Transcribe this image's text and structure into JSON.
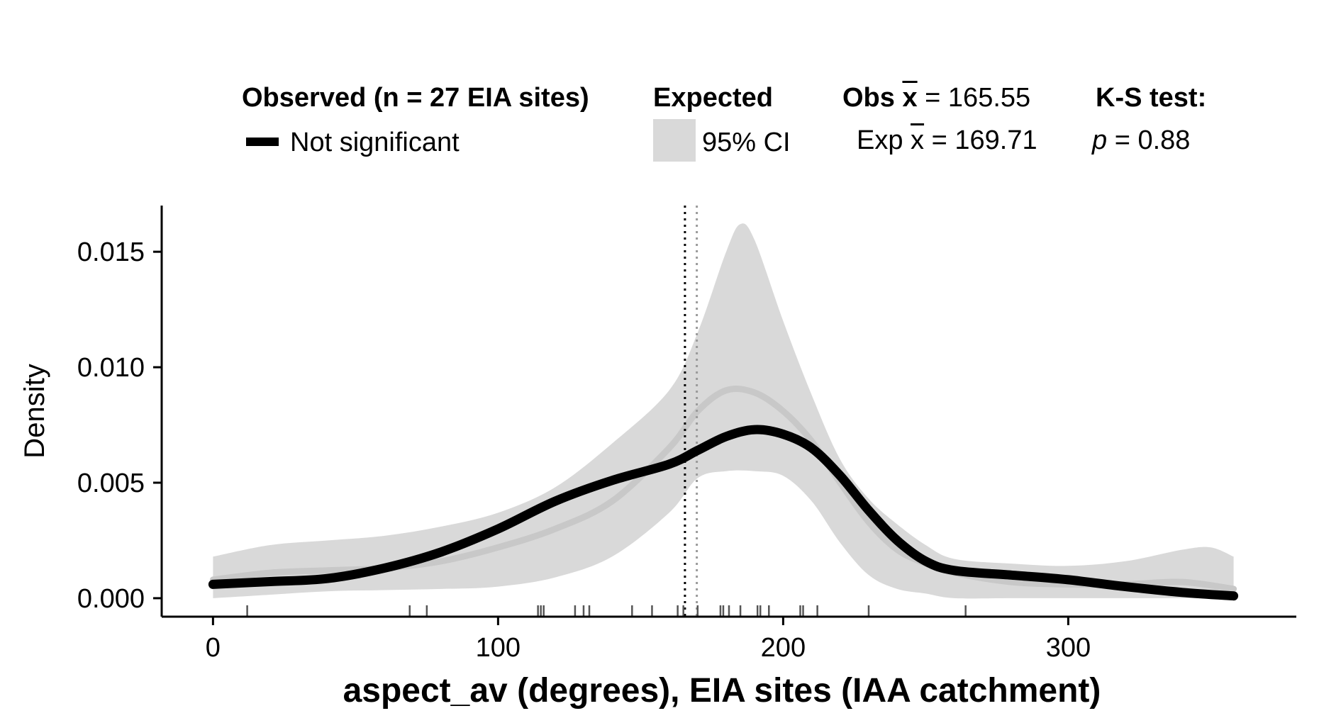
{
  "legend": {
    "observed_title": "Observed (n = 27 EIA sites)",
    "observed_item": "Not significant",
    "expected_title": "Expected",
    "expected_item": "95% CI",
    "obs_mean_label": "Obs",
    "obs_mean_symbol": "x",
    "obs_mean_value": "= 165.55",
    "exp_mean_label": "Exp",
    "exp_mean_symbol": "x",
    "exp_mean_value": "= 169.71",
    "ks_title": "K-S test:",
    "ks_p_symbol": "p",
    "ks_p_value": "= 0.88"
  },
  "colors": {
    "observed_line": "#000000",
    "expected_line": "#c8c8c8",
    "ci_fill": "#d9d9d9",
    "obs_mean_line": "#000000",
    "exp_mean_line": "#9a9a9a",
    "rug": "#555555"
  },
  "chart_data": {
    "type": "line",
    "xlabel": "aspect_av (degrees), EIA sites (IAA catchment)",
    "ylabel": "Density",
    "xlim": [
      -18,
      380
    ],
    "ylim": [
      -0.0008,
      0.017
    ],
    "x_ticks": [
      0,
      100,
      200,
      300
    ],
    "x_tick_labels": [
      "0",
      "100",
      "200",
      "300"
    ],
    "y_ticks": [
      0.0,
      0.005,
      0.01,
      0.015
    ],
    "y_tick_labels": [
      "0.000",
      "0.005",
      "0.010",
      "0.015"
    ],
    "grid": false,
    "legend_position": "top",
    "observed": {
      "name": "Not significant",
      "x": [
        0,
        20,
        40,
        60,
        80,
        100,
        120,
        140,
        160,
        170,
        180,
        190,
        200,
        210,
        220,
        230,
        240,
        250,
        260,
        280,
        300,
        320,
        340,
        358
      ],
      "y": [
        0.0006,
        0.00072,
        0.00085,
        0.0013,
        0.002,
        0.003,
        0.0042,
        0.0051,
        0.0058,
        0.0064,
        0.007,
        0.0073,
        0.0071,
        0.0065,
        0.0053,
        0.0038,
        0.0025,
        0.0016,
        0.0012,
        0.001,
        0.0008,
        0.0005,
        0.00025,
        0.0001
      ]
    },
    "expected": {
      "x": [
        0,
        20,
        40,
        60,
        80,
        100,
        120,
        140,
        160,
        170,
        180,
        190,
        200,
        210,
        220,
        230,
        240,
        250,
        260,
        280,
        300,
        320,
        340,
        358
      ],
      "y": [
        0.0008,
        0.0011,
        0.0012,
        0.0013,
        0.0016,
        0.0022,
        0.003,
        0.0042,
        0.0065,
        0.0081,
        0.009,
        0.0089,
        0.0081,
        0.0068,
        0.005,
        0.0033,
        0.0021,
        0.0015,
        0.0011,
        0.0007,
        0.0006,
        0.0006,
        0.0007,
        0.0004
      ]
    },
    "ci_lower": {
      "x": [
        0,
        20,
        40,
        60,
        80,
        100,
        120,
        140,
        160,
        170,
        180,
        190,
        200,
        210,
        220,
        230,
        240,
        250,
        260,
        280,
        300,
        320,
        340,
        358
      ],
      "y": [
        0.0,
        0.00015,
        0.0003,
        0.00035,
        0.0004,
        0.0005,
        0.0009,
        0.0018,
        0.0037,
        0.0052,
        0.0055,
        0.0055,
        0.0053,
        0.0042,
        0.0024,
        0.001,
        0.0004,
        0.0002,
        0.0,
        0.0,
        0.0,
        0.0,
        0.0,
        0.0
      ]
    },
    "ci_upper": {
      "x": [
        0,
        20,
        40,
        60,
        80,
        100,
        120,
        140,
        160,
        170,
        180,
        185,
        190,
        200,
        210,
        220,
        230,
        240,
        250,
        260,
        280,
        300,
        320,
        340,
        350,
        358
      ],
      "y": [
        0.0018,
        0.0023,
        0.0025,
        0.0027,
        0.0031,
        0.0037,
        0.0048,
        0.0067,
        0.009,
        0.0115,
        0.015,
        0.0162,
        0.0155,
        0.012,
        0.0088,
        0.006,
        0.0043,
        0.0032,
        0.0023,
        0.0017,
        0.0015,
        0.0014,
        0.0016,
        0.0021,
        0.0022,
        0.0018
      ]
    },
    "obs_mean_x": 165.55,
    "exp_mean_x": 169.71,
    "rug_x": [
      12,
      69,
      75,
      114,
      115,
      116,
      127,
      130,
      132,
      147,
      154,
      163,
      165,
      170,
      178,
      179,
      181,
      185,
      191,
      192,
      195,
      195,
      206,
      207,
      212,
      230,
      264
    ]
  }
}
